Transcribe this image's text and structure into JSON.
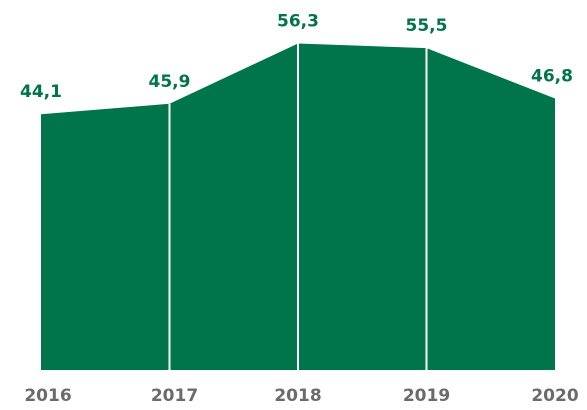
{
  "chart_data": {
    "type": "area",
    "categories": [
      "2016",
      "2017",
      "2018",
      "2019",
      "2020"
    ],
    "values": [
      44.1,
      45.9,
      56.3,
      55.5,
      46.8
    ],
    "value_labels": [
      "44,1",
      "45,9",
      "56,3",
      "55,5",
      "46,8"
    ],
    "color": "#00744a",
    "ylim": [
      0,
      60
    ]
  }
}
